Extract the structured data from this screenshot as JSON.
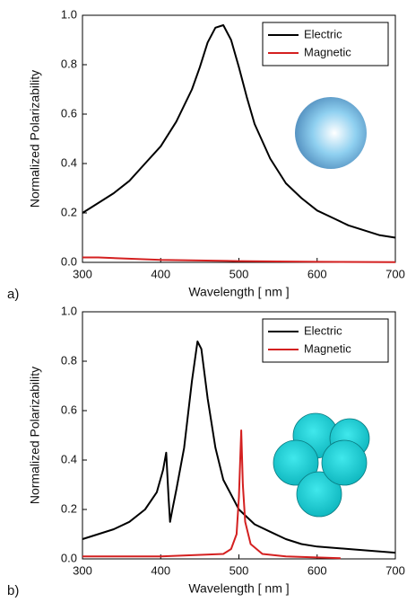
{
  "chart_data": [
    {
      "type": "line",
      "panel_label": "a)",
      "xlabel": "Wavelength [ nm ]",
      "ylabel": "Normalized Polarizability",
      "xlim": [
        300,
        700
      ],
      "ylim": [
        0,
        1
      ],
      "xticks": [
        300,
        400,
        500,
        600,
        700
      ],
      "yticks": [
        {
          "value": 0,
          "label": "0.0"
        },
        0.2,
        0.4,
        0.6,
        0.8,
        {
          "value": 1,
          "label": "1.0"
        }
      ],
      "legend": "upper right",
      "series": [
        {
          "name": "Electric",
          "color": "#000000",
          "x": [
            300,
            320,
            340,
            360,
            380,
            400,
            420,
            440,
            450,
            460,
            470,
            480,
            490,
            500,
            510,
            520,
            540,
            560,
            580,
            600,
            620,
            640,
            660,
            680,
            700
          ],
          "values": [
            0.2,
            0.24,
            0.28,
            0.33,
            0.4,
            0.47,
            0.57,
            0.7,
            0.79,
            0.89,
            0.95,
            0.96,
            0.9,
            0.79,
            0.67,
            0.56,
            0.42,
            0.32,
            0.26,
            0.21,
            0.18,
            0.15,
            0.13,
            0.11,
            0.1
          ]
        },
        {
          "name": "Magnetic",
          "color": "#d42020",
          "x": [
            300,
            320,
            400,
            500,
            600,
            700
          ],
          "values": [
            0.02,
            0.02,
            0.01,
            0.005,
            0.002,
            0.001
          ]
        }
      ]
    },
    {
      "type": "line",
      "panel_label": "b)",
      "xlabel": "Wavelength [ nm ]",
      "ylabel": "Normalized Polarizability",
      "xlim": [
        300,
        700
      ],
      "ylim": [
        0,
        1
      ],
      "xticks": [
        300,
        400,
        500,
        600,
        700
      ],
      "yticks": [
        {
          "value": 0,
          "label": "0.0"
        },
        0.2,
        0.4,
        0.6,
        0.8,
        {
          "value": 1,
          "label": "1.0"
        }
      ],
      "legend": "upper right",
      "series": [
        {
          "name": "Electric",
          "color": "#000000",
          "x": [
            300,
            320,
            340,
            360,
            380,
            395,
            403,
            407,
            410,
            412,
            415,
            420,
            430,
            440,
            447,
            452,
            460,
            470,
            480,
            500,
            520,
            540,
            560,
            580,
            600,
            640,
            700
          ],
          "values": [
            0.08,
            0.1,
            0.12,
            0.15,
            0.2,
            0.27,
            0.36,
            0.43,
            0.25,
            0.15,
            0.2,
            0.28,
            0.45,
            0.72,
            0.88,
            0.85,
            0.65,
            0.45,
            0.32,
            0.2,
            0.14,
            0.11,
            0.08,
            0.06,
            0.05,
            0.04,
            0.025
          ]
        },
        {
          "name": "Magnetic",
          "color": "#d42020",
          "x": [
            300,
            400,
            480,
            490,
            497,
            500,
            503,
            505,
            508,
            515,
            530,
            560,
            630
          ],
          "values": [
            0.01,
            0.01,
            0.02,
            0.04,
            0.1,
            0.25,
            0.52,
            0.3,
            0.15,
            0.06,
            0.02,
            0.01,
            0.003
          ]
        }
      ]
    }
  ]
}
